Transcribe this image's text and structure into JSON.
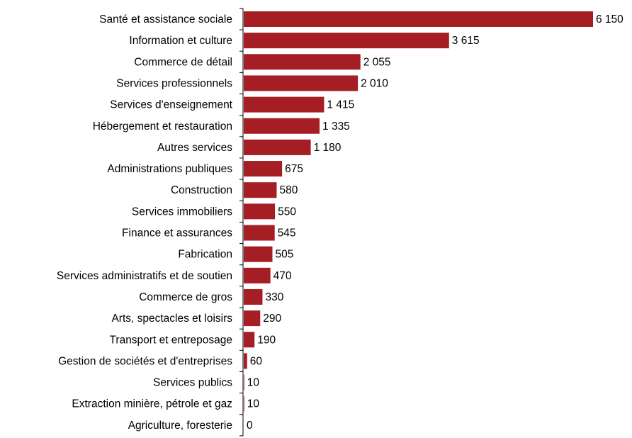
{
  "chart_data": {
    "type": "bar",
    "orientation": "horizontal",
    "title": "",
    "xlabel": "",
    "ylabel": "",
    "grid": false,
    "legend": "none",
    "bar_color": "#A51E24",
    "xlim": [
      0,
      6150
    ],
    "categories": [
      "Santé et assistance sociale",
      "Information et culture",
      "Commerce de détail",
      "Services professionnels",
      "Services d'enseignement",
      "Hébergement et restauration",
      "Autres services",
      "Administrations publiques",
      "Construction",
      "Services immobiliers",
      "Finance et assurances",
      "Fabrication",
      "Services administratifs et de soutien",
      "Commerce de gros",
      "Arts, spectacles et loisirs",
      "Transport et entreposage",
      "Gestion de sociétés et d'entreprises",
      "Services publics",
      "Extraction minière, pétrole et gaz",
      "Agriculture, foresterie"
    ],
    "values": [
      6150,
      3615,
      2055,
      2010,
      1415,
      1335,
      1180,
      675,
      580,
      550,
      545,
      505,
      470,
      330,
      290,
      190,
      60,
      10,
      10,
      0
    ],
    "data_labels": [
      "6 150",
      "3 615",
      "2 055",
      "2 010",
      "1 415",
      "1 335",
      "1 180",
      "675",
      "580",
      "550",
      "545",
      "505",
      "470",
      "330",
      "290",
      "190",
      "60",
      "10",
      "10",
      "0"
    ]
  }
}
